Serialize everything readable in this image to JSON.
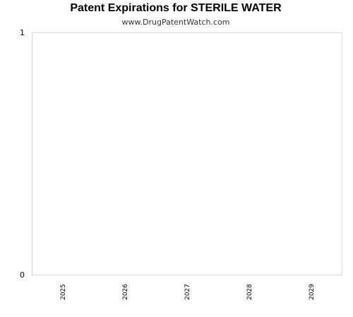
{
  "chart_data": {
    "type": "bar",
    "title": "Patent Expirations for STERILE WATER",
    "subtitle": "www.DrugPatentWatch.com",
    "categories": [
      "2025",
      "2026",
      "2027",
      "2028",
      "2029"
    ],
    "values": [
      0,
      0,
      0,
      0,
      0
    ],
    "xlabel": "",
    "ylabel": "",
    "ylim": [
      0,
      1
    ],
    "yticks": [
      "0",
      "1"
    ],
    "grid": false,
    "legend": "none"
  },
  "colors": {
    "plot_border": "#d9d9d9",
    "bar": "#4a7bc8"
  }
}
